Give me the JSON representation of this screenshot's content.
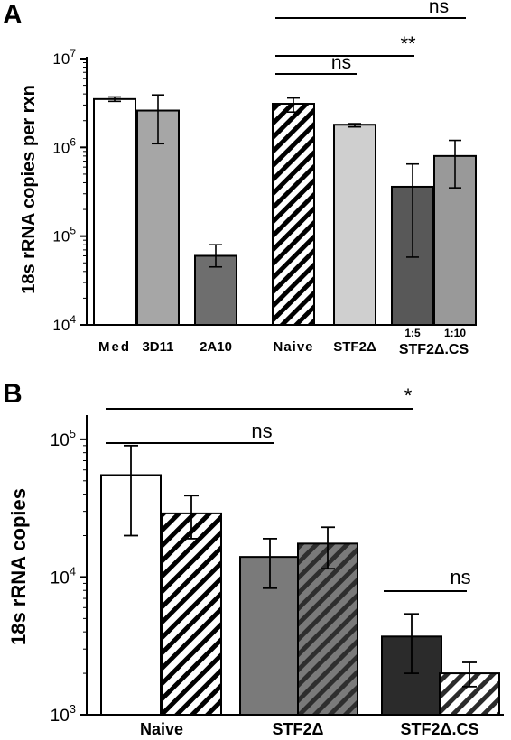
{
  "chart_data": [
    {
      "type": "bar",
      "panel": "A",
      "ylabel": "18s rRNA copies per rxn",
      "yscale": "log",
      "ylim": [
        10000,
        10000000
      ],
      "yticks": [
        {
          "value": 10000,
          "base": "10",
          "exp": "4"
        },
        {
          "value": 100000,
          "base": "10",
          "exp": "5"
        },
        {
          "value": 1000000,
          "base": "10",
          "exp": "6"
        },
        {
          "value": 10000000,
          "base": "10",
          "exp": "7"
        }
      ],
      "categories": [
        "Med",
        "3D11",
        "2A10",
        "Naive",
        "STF2Δ",
        "1:5",
        "1:10"
      ],
      "group_labels": [
        {
          "text": "STF2Δ.CS",
          "under": [
            5,
            6
          ]
        }
      ],
      "bars": [
        {
          "category": "Med",
          "value": 3500000,
          "err_low": 3300000,
          "err_high": 3700000,
          "fill": "#ffffff",
          "hatch": false
        },
        {
          "category": "3D11",
          "value": 2600000,
          "err_low": 1100000,
          "err_high": 3900000,
          "fill": "#a6a6a6",
          "hatch": false
        },
        {
          "category": "2A10",
          "value": 60000,
          "err_low": 45000,
          "err_high": 80000,
          "fill": "#6e6e6e",
          "hatch": false
        },
        {
          "category": "Naive",
          "value": 3100000,
          "err_low": 2500000,
          "err_high": 3600000,
          "fill": "#ffffff",
          "hatch": true
        },
        {
          "category": "STF2Δ",
          "value": 1800000,
          "err_low": 1700000,
          "err_high": 1850000,
          "fill": "#cfcfcf",
          "hatch": false
        },
        {
          "category": "1:5",
          "value": 360000,
          "err_low": 58000,
          "err_high": 650000,
          "fill": "#585858",
          "hatch": false
        },
        {
          "category": "1:10",
          "value": 800000,
          "err_low": 350000,
          "err_high": 1200000,
          "fill": "#999999",
          "hatch": false
        }
      ],
      "significance": [
        {
          "from": "Naive",
          "to": "STF2Δ",
          "label": "ns"
        },
        {
          "from": "Naive",
          "to": "1:5",
          "label": "**"
        },
        {
          "from": "Naive",
          "to": "1:10",
          "label": "ns"
        }
      ]
    },
    {
      "type": "bar",
      "panel": "B",
      "ylabel": "18s rRNA copies",
      "yscale": "log",
      "ylim": [
        1000,
        150000
      ],
      "yticks": [
        {
          "value": 1000,
          "base": "10",
          "exp": "3"
        },
        {
          "value": 10000,
          "base": "10",
          "exp": "4"
        },
        {
          "value": 100000,
          "base": "10",
          "exp": "5"
        }
      ],
      "categories": [
        "Naive",
        "STF2Δ",
        "STF2Δ.CS"
      ],
      "bars": [
        {
          "group": "Naive",
          "value": 55000,
          "err_low": 20000,
          "err_high": 90000,
          "fill": "#ffffff",
          "hatch": false
        },
        {
          "group": "Naive",
          "value": 29000,
          "err_low": 19000,
          "err_high": 39000,
          "fill": "#ffffff",
          "hatch": true
        },
        {
          "group": "STF2Δ",
          "value": 14000,
          "err_low": 8300,
          "err_high": 19000,
          "fill": "#7a7a7a",
          "hatch": false
        },
        {
          "group": "STF2Δ",
          "value": 17500,
          "err_low": 11500,
          "err_high": 23000,
          "fill": "#7a7a7a",
          "hatch": true
        },
        {
          "group": "STF2Δ.CS",
          "value": 3700,
          "err_low": 2000,
          "err_high": 5400,
          "fill": "#2b2b2b",
          "hatch": false
        },
        {
          "group": "STF2Δ.CS",
          "value": 2000,
          "err_low": 1600,
          "err_high": 2400,
          "fill": "#2b2b2b",
          "hatch": true
        }
      ],
      "significance": [
        {
          "from_bar": 0,
          "to_bar": 2,
          "label": "ns"
        },
        {
          "from_bar": 0,
          "to_bar": 4,
          "label": "*"
        },
        {
          "from_bar": 4,
          "to_bar": 5,
          "label": "ns"
        }
      ]
    }
  ]
}
